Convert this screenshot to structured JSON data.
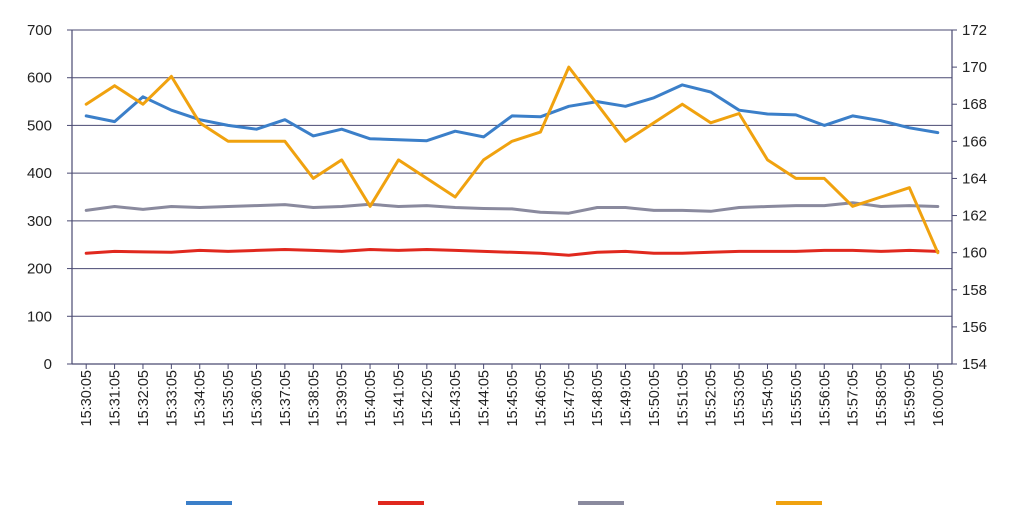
{
  "chart_data": {
    "type": "line",
    "x": [
      "15:30:05",
      "15:31:05",
      "15:32:05",
      "15:33:05",
      "15:34:05",
      "15:35:05",
      "15:36:05",
      "15:37:05",
      "15:38:05",
      "15:39:05",
      "15:40:05",
      "15:41:05",
      "15:42:05",
      "15:43:05",
      "15:44:05",
      "15:45:05",
      "15:46:05",
      "15:47:05",
      "15:48:05",
      "15:49:05",
      "15:50:05",
      "15:51:05",
      "15:52:05",
      "15:53:05",
      "15:54:05",
      "15:55:05",
      "15:56:05",
      "15:57:05",
      "15:58:05",
      "15:59:05",
      "16:00:05"
    ],
    "y_left": {
      "ylim": [
        0,
        700
      ],
      "ticks": [
        "0",
        "100",
        "200",
        "300",
        "400",
        "500",
        "600",
        "700"
      ]
    },
    "y_right": {
      "ylim": [
        154,
        172
      ],
      "ticks": [
        "154",
        "156",
        "158",
        "160",
        "162",
        "164",
        "166",
        "168",
        "170",
        "172"
      ]
    },
    "grid": true,
    "legend": "bottom",
    "series": [
      {
        "color": "#3b7fc9",
        "axis": "left",
        "values": [
          520,
          508,
          560,
          532,
          512,
          500,
          492,
          512,
          478,
          492,
          472,
          470,
          468,
          488,
          476,
          520,
          518,
          540,
          550,
          540,
          558,
          585,
          570,
          532,
          524,
          522,
          500,
          520,
          510,
          495,
          485
        ]
      },
      {
        "color": "#e0281e",
        "axis": "left",
        "values": [
          232,
          236,
          235,
          234,
          238,
          236,
          238,
          240,
          238,
          236,
          240,
          238,
          240,
          238,
          236,
          234,
          232,
          228,
          234,
          236,
          232,
          232,
          234,
          236,
          236,
          236,
          238,
          238,
          236,
          238,
          236
        ]
      },
      {
        "color": "#8a8a9e",
        "axis": "left",
        "values": [
          322,
          330,
          324,
          330,
          328,
          330,
          332,
          334,
          328,
          330,
          335,
          330,
          332,
          328,
          326,
          325,
          318,
          316,
          328,
          328,
          322,
          322,
          320,
          328,
          330,
          332,
          332,
          338,
          330,
          332,
          330
        ]
      },
      {
        "color": "#f0a20f",
        "axis": "right",
        "values": [
          168,
          169,
          168,
          169.5,
          167,
          166,
          166,
          166,
          164,
          165,
          162.5,
          165,
          164,
          163,
          165,
          166,
          166.5,
          170,
          168,
          166,
          167,
          168,
          167,
          167.5,
          165,
          164,
          164,
          162.5,
          163,
          163.5,
          160
        ]
      }
    ]
  }
}
